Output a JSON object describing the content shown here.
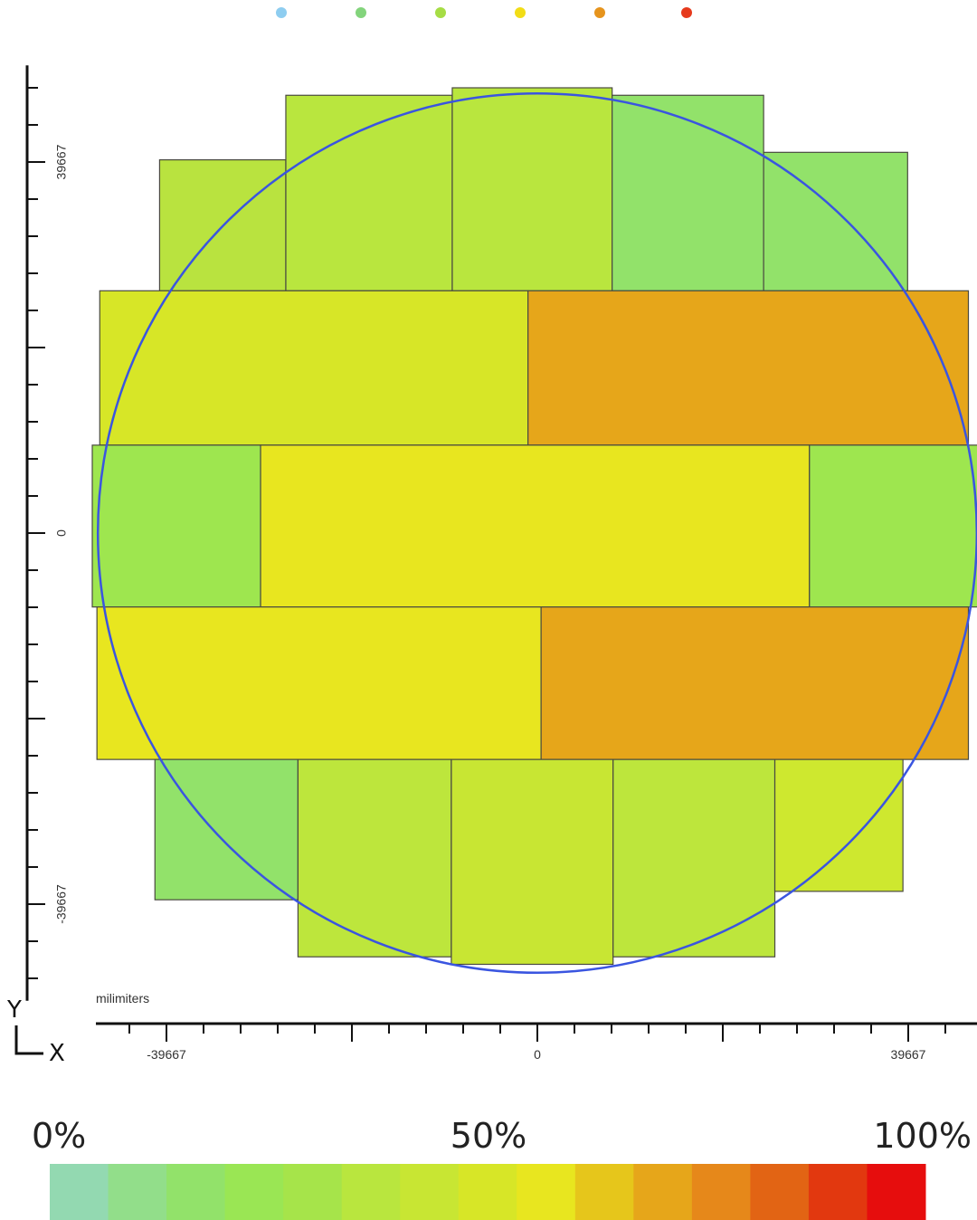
{
  "chart_data": {
    "type": "heatmap",
    "description_unit": "milimiters",
    "legend_dots": [
      "#8ecdf0",
      "#83d47c",
      "#a6dd45",
      "#f2dd16",
      "#e6941d",
      "#e63a1c"
    ],
    "axes": {
      "x": {
        "letter": "X",
        "unit": "milimiters",
        "range": [
          -50000,
          50000
        ],
        "ticks": [
          -39667,
          0,
          39667
        ],
        "tick_labels": [
          "-39667",
          "0",
          "39667"
        ]
      },
      "y": {
        "letter": "Y",
        "range": [
          -50000,
          50000
        ],
        "ticks": [
          39667,
          0,
          -39667
        ],
        "tick_labels": [
          "39667",
          "0",
          "-39667"
        ]
      }
    },
    "wafer": {
      "center": [
        0,
        0
      ],
      "radius": 47000,
      "outline_color": "#3a55e0"
    },
    "cells": [
      {
        "x0": -40400,
        "x1": -26900,
        "y0": 25900,
        "y1": 39900,
        "color": "#b9e33f"
      },
      {
        "x0": -26900,
        "x1": -9100,
        "y0": 25900,
        "y1": 46800,
        "color": "#b9e63e"
      },
      {
        "x0": -9100,
        "x1": 8000,
        "y0": 25900,
        "y1": 47600,
        "color": "#b9e63e"
      },
      {
        "x0": 8000,
        "x1": 24200,
        "y0": 25900,
        "y1": 46800,
        "color": "#92e26a"
      },
      {
        "x0": 24200,
        "x1": 39600,
        "y0": 25900,
        "y1": 40700,
        "color": "#92e26a"
      },
      {
        "x0": -46800,
        "x1": -1000,
        "y0": 9400,
        "y1": 25900,
        "color": "#d7e627"
      },
      {
        "x0": -1000,
        "x1": 46100,
        "y0": 9400,
        "y1": 25900,
        "color": "#e6a61a"
      },
      {
        "x0": -47600,
        "x1": -29600,
        "y0": -7900,
        "y1": 9400,
        "color": "#9ee64f"
      },
      {
        "x0": -29600,
        "x1": 29100,
        "y0": -7900,
        "y1": 9400,
        "color": "#e8e61f"
      },
      {
        "x0": 29100,
        "x1": 47300,
        "y0": -7900,
        "y1": 9400,
        "color": "#9ee64f"
      },
      {
        "x0": -47100,
        "x1": 400,
        "y0": -24200,
        "y1": -7900,
        "color": "#e8e61f"
      },
      {
        "x0": 400,
        "x1": 46100,
        "y0": -24200,
        "y1": -7900,
        "color": "#e6a61a"
      },
      {
        "x0": -40900,
        "x1": -25600,
        "y0": -39200,
        "y1": -24200,
        "color": "#92e26a"
      },
      {
        "x0": -25600,
        "x1": -9200,
        "y0": -45300,
        "y1": -24200,
        "color": "#bde63c"
      },
      {
        "x0": -9200,
        "x1": 8100,
        "y0": -46100,
        "y1": -24200,
        "color": "#c8e633"
      },
      {
        "x0": 8100,
        "x1": 25400,
        "y0": -45300,
        "y1": -24200,
        "color": "#bde63c"
      },
      {
        "x0": 25400,
        "x1": 39100,
        "y0": -38300,
        "y1": -24200,
        "color": "#cee82f"
      }
    ],
    "color_scale": {
      "labels": [
        "0%",
        "50%",
        "100%"
      ],
      "colors": [
        "#93d9b1",
        "#92de8a",
        "#92e26a",
        "#9ae654",
        "#a6e44a",
        "#b9e63e",
        "#c8e633",
        "#d7e627",
        "#e8e61f",
        "#e6c61b",
        "#e6a61a",
        "#e6881a",
        "#e26414",
        "#e2380f",
        "#e60d0d"
      ]
    }
  }
}
